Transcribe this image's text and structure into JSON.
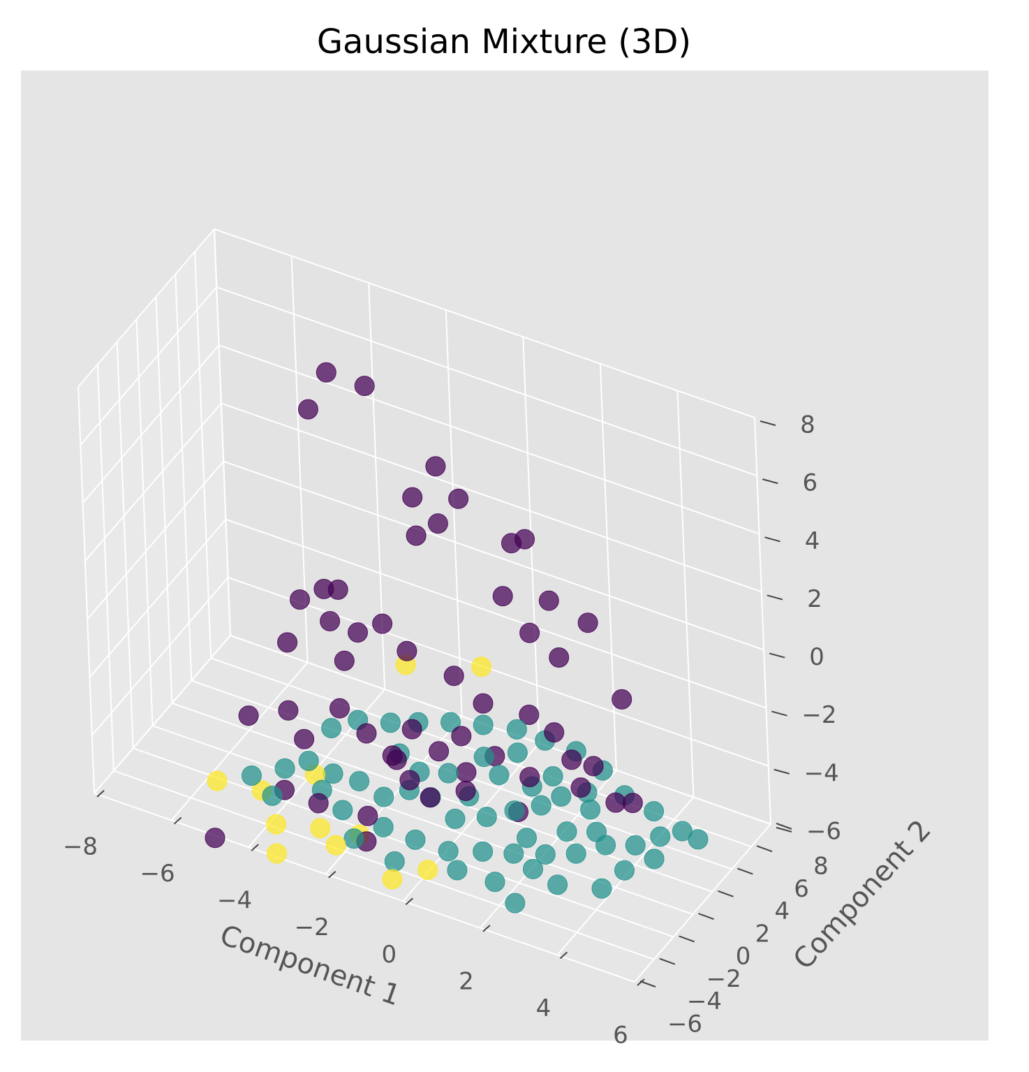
{
  "chart_data": {
    "type": "scatter",
    "projection": "3d",
    "title": "Gaussian Mixture (3D)",
    "xlabel": "Component 1",
    "ylabel": "Component 2",
    "zlabel": "",
    "xlim": [
      -8,
      6
    ],
    "ylim": [
      -6,
      8
    ],
    "zlim": [
      -6,
      8
    ],
    "xticks": [
      "−8",
      "−6",
      "−4",
      "−2",
      "0",
      "2",
      "4",
      "6"
    ],
    "yticks": [
      "−6",
      "−4",
      "−2",
      "0",
      "2",
      "4",
      "6",
      "8"
    ],
    "zticks": [
      "−6",
      "−4",
      "−2",
      "0",
      "2",
      "4",
      "6",
      "8"
    ],
    "grid": true,
    "legend": "none",
    "colors": {
      "background": "#e5e5e5",
      "pane_left": "#e9e9e9",
      "pane_right": "#e3e3e3",
      "pane_floor": "#e6e6e6",
      "grid": "#ffffff",
      "cluster_0": "#440154",
      "cluster_1": "#21918c",
      "cluster_2": "#fde725"
    },
    "series": [
      {
        "cluster": 0,
        "color": "#440154",
        "points": [
          [
            -4.3,
            4.6,
            6.1
          ],
          [
            -3.2,
            4.2,
            6.3
          ],
          [
            -4.6,
            3.8,
            5.0
          ],
          [
            -1.5,
            4.5,
            4.2
          ],
          [
            -0.8,
            4.0,
            3.6
          ],
          [
            -1.9,
            3.6,
            3.3
          ],
          [
            -1.2,
            3.4,
            2.8
          ],
          [
            0.6,
            3.8,
            2.8
          ],
          [
            0.9,
            4.0,
            3.0
          ],
          [
            -2.0,
            4.2,
            1.7
          ],
          [
            0.4,
            3.5,
            1.0
          ],
          [
            1.5,
            3.9,
            1.2
          ],
          [
            1.2,
            3.0,
            0.3
          ],
          [
            2.0,
            2.8,
            -0.1
          ],
          [
            2.5,
            3.9,
            0.9
          ],
          [
            3.5,
            3.2,
            -1.0
          ],
          [
            -3.2,
            0.8,
            0.6
          ],
          [
            -4.0,
            0.0,
            0.2
          ],
          [
            -2.1,
            0.9,
            -0.1
          ],
          [
            -1.4,
            0.6,
            -0.6
          ],
          [
            -3.5,
            1.0,
            -0.7
          ],
          [
            -2.7,
            0.7,
            -0.6
          ],
          [
            -4.4,
            0.1,
            -1.5
          ],
          [
            -3.0,
            0.4,
            -1.6
          ],
          [
            -0.3,
            1.0,
            -1.1
          ],
          [
            0.6,
            0.4,
            -1.4
          ],
          [
            1.5,
            1.5,
            -1.8
          ],
          [
            2.3,
            0.9,
            -1.8
          ],
          [
            3.3,
            0.9,
            -2.5
          ],
          [
            4.4,
            0.5,
            -3.1
          ],
          [
            -4.8,
            -2.5,
            -3.2
          ],
          [
            -4.1,
            -1.2,
            -3.2
          ],
          [
            -3.5,
            -2.0,
            -3.6
          ],
          [
            -2.8,
            -1.0,
            -2.6
          ],
          [
            -1.0,
            -0.7,
            -2.6
          ],
          [
            0.1,
            0.0,
            -2.6
          ],
          [
            -2.2,
            -0.7,
            -3.3
          ],
          [
            -1.3,
            -1.2,
            -3.6
          ],
          [
            -0.4,
            -0.4,
            -3.2
          ],
          [
            0.8,
            0.6,
            -3.2
          ],
          [
            1.8,
            0.2,
            -3.3
          ],
          [
            3.0,
            0.7,
            -3.3
          ],
          [
            3.9,
            0.7,
            -3.4
          ],
          [
            -0.9,
            -1.5,
            -4.0
          ],
          [
            -0.3,
            -1.8,
            -4.2
          ],
          [
            0.4,
            -0.9,
            -4.0
          ],
          [
            -3.0,
            -2.7,
            -5.3
          ],
          [
            -3.8,
            -3.0,
            -5.1
          ],
          [
            -1.8,
            -2.4,
            -5.3
          ],
          [
            -1.7,
            -3.0,
            -5.9
          ],
          [
            1.6,
            -0.3,
            -4.4
          ],
          [
            -5.3,
            -4.4,
            -6.9
          ],
          [
            -1.3,
            -1.6,
            -3.3
          ],
          [
            0.3,
            -0.4,
            -3.6
          ],
          [
            2.6,
            1.4,
            -2.8
          ],
          [
            -3.6,
            0.9,
            0.4
          ]
        ]
      },
      {
        "cluster": 1,
        "color": "#21918c",
        "points": [
          [
            -1.0,
            -1.2,
            -4.5
          ],
          [
            -0.5,
            -1.0,
            -4.6
          ],
          [
            0.2,
            -1.3,
            -4.9
          ],
          [
            0.9,
            -0.8,
            -4.7
          ],
          [
            1.5,
            -0.3,
            -4.4
          ],
          [
            2.1,
            0.1,
            -4.1
          ],
          [
            -1.6,
            -1.5,
            -4.9
          ],
          [
            -2.2,
            -1.6,
            -4.6
          ],
          [
            -2.8,
            -1.9,
            -4.5
          ],
          [
            -3.4,
            -2.0,
            -4.3
          ],
          [
            -3.9,
            -2.5,
            -4.6
          ],
          [
            -3.0,
            -2.3,
            -5.0
          ],
          [
            -2.4,
            -2.6,
            -5.3
          ],
          [
            -1.4,
            -2.4,
            -5.5
          ],
          [
            -0.6,
            -2.3,
            -5.6
          ],
          [
            0.2,
            -2.1,
            -5.7
          ],
          [
            1.0,
            -1.7,
            -5.5
          ],
          [
            1.7,
            -1.3,
            -5.4
          ],
          [
            2.4,
            -0.8,
            -5.3
          ],
          [
            3.1,
            -0.4,
            -5.1
          ],
          [
            3.7,
            0.3,
            -4.8
          ],
          [
            4.4,
            0.6,
            -4.6
          ],
          [
            4.9,
            1.2,
            -4.3
          ],
          [
            5.3,
            1.9,
            -4.2
          ],
          [
            5.6,
            2.3,
            -4.5
          ],
          [
            4.6,
            1.8,
            -3.8
          ],
          [
            3.9,
            1.6,
            -3.5
          ],
          [
            3.3,
            1.8,
            -3.0
          ],
          [
            2.7,
            1.5,
            -2.5
          ],
          [
            2.0,
            1.1,
            -2.3
          ],
          [
            1.3,
            1.0,
            -2.2
          ],
          [
            0.5,
            0.7,
            -2.3
          ],
          [
            -0.3,
            0.5,
            -2.5
          ],
          [
            -1.1,
            0.3,
            -2.8
          ],
          [
            -1.8,
            0.2,
            -3.1
          ],
          [
            -2.6,
            0.0,
            -3.3
          ],
          [
            -3.2,
            -0.4,
            -3.7
          ],
          [
            1.0,
            0.2,
            -3.6
          ],
          [
            1.8,
            0.4,
            -3.7
          ],
          [
            2.5,
            0.6,
            -3.8
          ],
          [
            3.2,
            0.8,
            -4.0
          ],
          [
            -0.2,
            -0.3,
            -3.9
          ],
          [
            -0.9,
            -0.5,
            -4.1
          ],
          [
            0.4,
            -0.6,
            -4.3
          ],
          [
            2.8,
            -0.1,
            -4.6
          ],
          [
            3.5,
            0.2,
            -4.4
          ],
          [
            1.9,
            -0.7,
            -5.0
          ],
          [
            -4.7,
            -2.8,
            -5.1
          ],
          [
            -4.1,
            -3.1,
            -5.4
          ],
          [
            -2.0,
            -3.1,
            -5.9
          ],
          [
            -0.9,
            -3.3,
            -6.1
          ],
          [
            0.6,
            -2.8,
            -5.9
          ],
          [
            1.5,
            -2.5,
            -6.0
          ],
          [
            2.9,
            -1.6,
            -5.8
          ],
          [
            3.9,
            -1.0,
            -5.7
          ],
          [
            4.3,
            -0.2,
            -5.2
          ],
          [
            4.8,
            0.9,
            -5.0
          ],
          [
            1.9,
            -2.1,
            -6.7
          ],
          [
            2.3,
            -1.7,
            -5.5
          ],
          [
            -1.3,
            -0.9,
            -3.5
          ],
          [
            0.7,
            -0.1,
            -3.0
          ],
          [
            1.4,
            0.6,
            -2.8
          ],
          [
            2.2,
            1.0,
            -3.4
          ],
          [
            3.0,
            1.3,
            -3.7
          ]
        ]
      },
      {
        "cluster": 2,
        "color": "#fde725",
        "points": [
          [
            -5.4,
            -3.6,
            -5.3
          ],
          [
            -4.0,
            -3.2,
            -6.3
          ],
          [
            -3.8,
            -4.0,
            -6.9
          ],
          [
            -2.4,
            -3.4,
            -6.2
          ],
          [
            -0.9,
            -3.6,
            -6.6
          ],
          [
            -1.5,
            0.8,
            -1.2
          ],
          [
            0.3,
            1.5,
            -0.7
          ],
          [
            -4.5,
            -2.6,
            -5.6
          ],
          [
            -2.9,
            -3.0,
            -6.0
          ],
          [
            -1.9,
            -2.9,
            -5.8
          ],
          [
            -3.3,
            -1.8,
            -4.8
          ],
          [
            -0.2,
            -2.7,
            -6.3
          ]
        ]
      }
    ]
  }
}
